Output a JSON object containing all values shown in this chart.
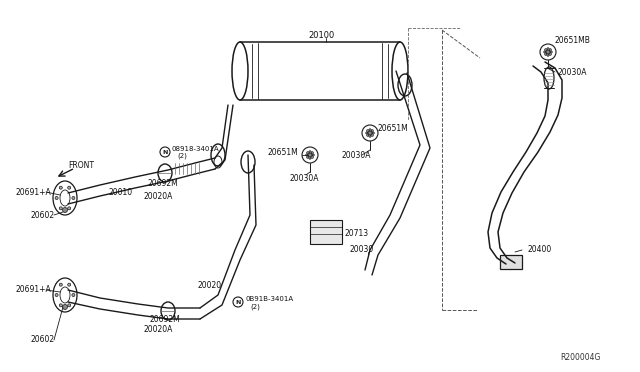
{
  "bg_color": "#ffffff",
  "line_color": "#1a1a1a",
  "ref_code": "R200004G",
  "figsize": [
    6.4,
    3.72
  ],
  "dpi": 100,
  "xlim": [
    0,
    640
  ],
  "ylim": [
    0,
    372
  ]
}
